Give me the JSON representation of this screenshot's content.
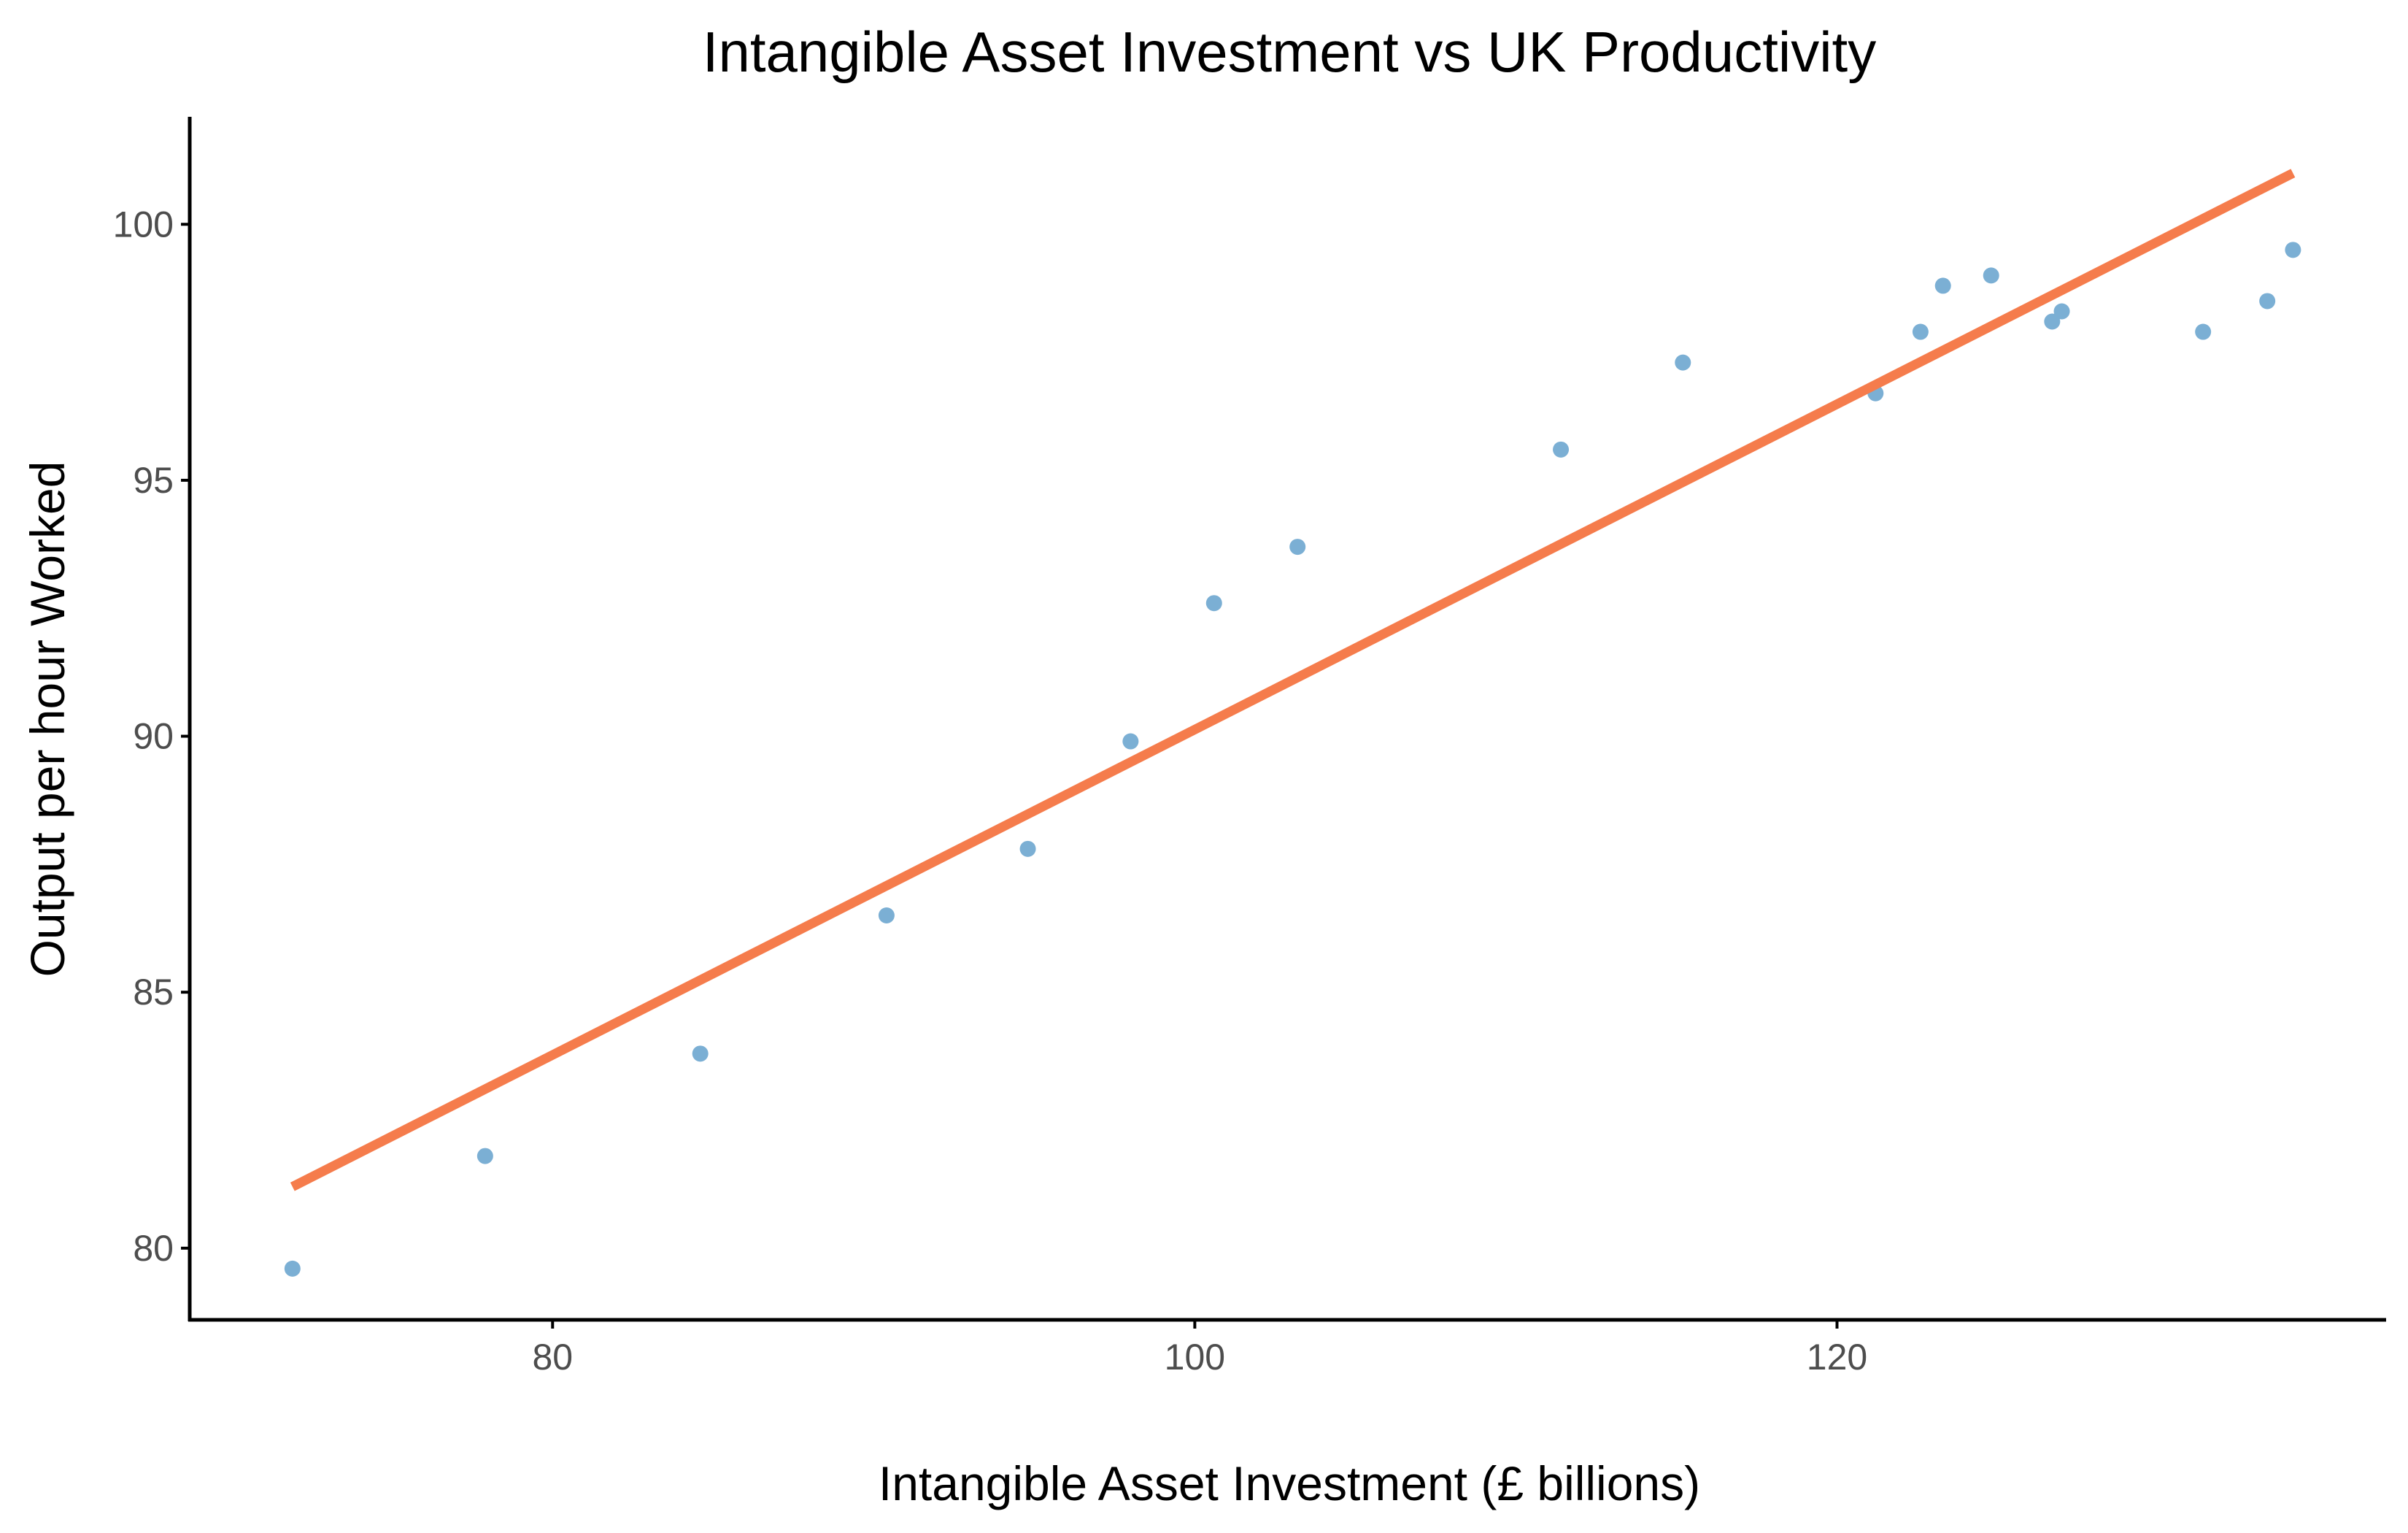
{
  "chart_data": {
    "type": "scatter",
    "title": "Intangible Asset Investment vs UK Productivity",
    "xlabel": "Intangible Asset Investment (£ billions)",
    "ylabel": "Output per hour Worked",
    "xlim": [
      68.7,
      137.1
    ],
    "ylim": [
      78.6,
      102.1
    ],
    "x_ticks": [
      80,
      100,
      120
    ],
    "y_ticks": [
      80,
      85,
      90,
      95,
      100
    ],
    "grid": false,
    "legend": "none",
    "point_color": "#7bafd4",
    "line_color": "#f57c4c",
    "points": [
      {
        "x": 71.9,
        "y": 79.6
      },
      {
        "x": 77.9,
        "y": 81.8
      },
      {
        "x": 84.6,
        "y": 83.8
      },
      {
        "x": 90.4,
        "y": 86.5
      },
      {
        "x": 94.8,
        "y": 87.8
      },
      {
        "x": 98.0,
        "y": 89.9
      },
      {
        "x": 100.6,
        "y": 92.6
      },
      {
        "x": 103.2,
        "y": 93.7
      },
      {
        "x": 111.4,
        "y": 95.6
      },
      {
        "x": 115.2,
        "y": 97.3
      },
      {
        "x": 121.2,
        "y": 96.7
      },
      {
        "x": 122.6,
        "y": 97.9
      },
      {
        "x": 123.3,
        "y": 98.8
      },
      {
        "x": 124.8,
        "y": 99.0
      },
      {
        "x": 126.7,
        "y": 98.1
      },
      {
        "x": 127.0,
        "y": 98.3
      },
      {
        "x": 131.4,
        "y": 97.9
      },
      {
        "x": 133.4,
        "y": 98.5
      },
      {
        "x": 134.2,
        "y": 99.5
      }
    ],
    "trend_line": {
      "x": [
        71.9,
        134.2
      ],
      "y": [
        81.2,
        101.0
      ]
    }
  }
}
